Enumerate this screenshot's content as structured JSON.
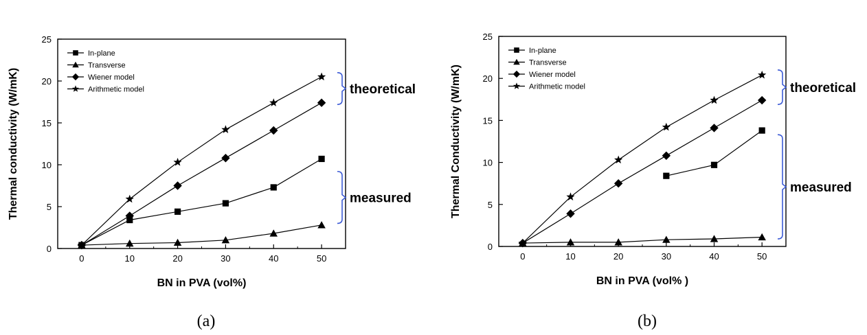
{
  "chart_data": [
    {
      "type": "line",
      "caption": "(a)",
      "xlabel": "BN in PVA (vol%)",
      "ylabel": "Thermal conductivity (W/mK)",
      "xlim": [
        -5,
        55
      ],
      "ylim": [
        0,
        25
      ],
      "xticks": [
        0,
        10,
        20,
        30,
        40,
        50
      ],
      "yticks": [
        0,
        5,
        10,
        15,
        20,
        25
      ],
      "legend_position": "top-left",
      "grid": false,
      "series": [
        {
          "name": "In-plane",
          "marker": "square",
          "x": [
            0,
            10,
            20,
            30,
            40,
            50
          ],
          "values": [
            0.4,
            3.4,
            4.4,
            5.4,
            7.3,
            10.7
          ]
        },
        {
          "name": "Transverse",
          "marker": "triangle",
          "x": [
            0,
            10,
            20,
            30,
            40,
            50
          ],
          "values": [
            0.4,
            0.6,
            0.7,
            1.0,
            1.8,
            2.8
          ]
        },
        {
          "name": "Wiener model",
          "marker": "diamond",
          "x": [
            0,
            10,
            20,
            30,
            40,
            50
          ],
          "values": [
            0.4,
            3.9,
            7.5,
            10.8,
            14.1,
            17.4
          ]
        },
        {
          "name": "Arithmetic model",
          "marker": "star",
          "x": [
            0,
            10,
            20,
            30,
            40,
            50
          ],
          "values": [
            0.4,
            5.9,
            10.3,
            14.2,
            17.4,
            20.5
          ]
        }
      ],
      "annotations": [
        {
          "label": "theoretical",
          "y_range": [
            17.2,
            21.0
          ]
        },
        {
          "label": "measured",
          "y_range": [
            3.0,
            9.2
          ]
        }
      ]
    },
    {
      "type": "line",
      "caption": "(b)",
      "xlabel": "BN in PVA (vol% )",
      "ylabel": "Thermal Conductivity (W/mK)",
      "xlim": [
        -5,
        55
      ],
      "ylim": [
        0,
        25
      ],
      "xticks": [
        0,
        10,
        20,
        30,
        40,
        50
      ],
      "yticks": [
        0,
        5,
        10,
        15,
        20,
        25
      ],
      "legend_position": "top-left",
      "grid": false,
      "series": [
        {
          "name": "In-plane",
          "marker": "square",
          "x": [
            30,
            40,
            50
          ],
          "values": [
            8.4,
            9.7,
            13.8
          ]
        },
        {
          "name": "Transverse",
          "marker": "triangle",
          "x": [
            0,
            10,
            20,
            30,
            40,
            50
          ],
          "values": [
            0.4,
            0.5,
            0.5,
            0.8,
            0.9,
            1.1
          ]
        },
        {
          "name": "Wiener model",
          "marker": "diamond",
          "x": [
            0,
            10,
            20,
            30,
            40,
            50
          ],
          "values": [
            0.4,
            3.9,
            7.5,
            10.8,
            14.1,
            17.4
          ]
        },
        {
          "name": "Arithmetic model",
          "marker": "star",
          "x": [
            0,
            10,
            20,
            30,
            40,
            50
          ],
          "values": [
            0.4,
            5.9,
            10.3,
            14.2,
            17.4,
            20.4
          ]
        }
      ],
      "annotations": [
        {
          "label": "theoretical",
          "y_range": [
            16.9,
            21.0
          ]
        },
        {
          "label": "measured",
          "y_range": [
            0.9,
            13.3
          ]
        }
      ]
    }
  ]
}
